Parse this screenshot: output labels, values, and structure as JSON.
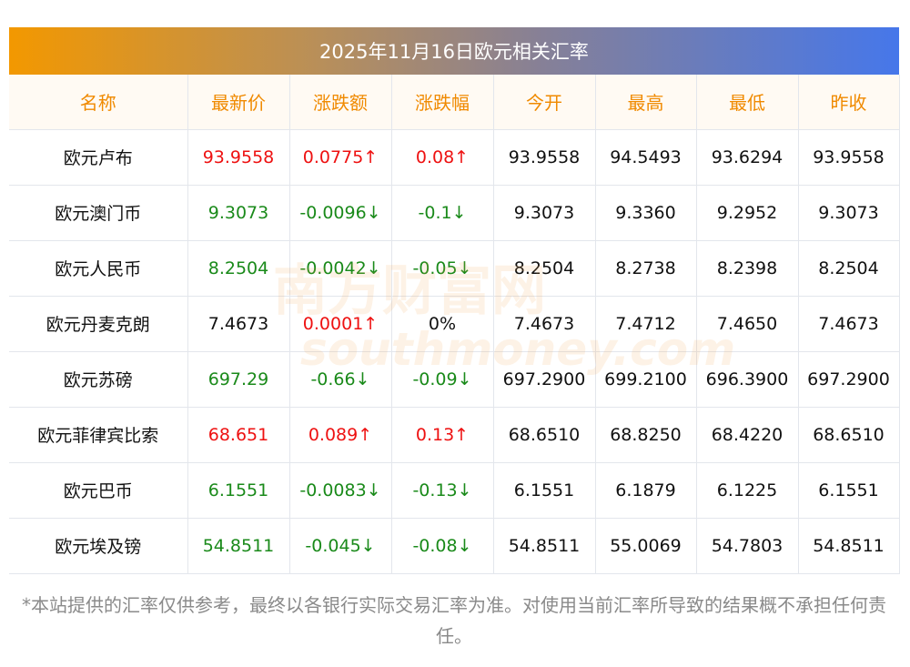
{
  "title": "2025年11月16日欧元相关汇率",
  "columns": [
    "名称",
    "最新价",
    "涨跌额",
    "涨跌幅",
    "今开",
    "最高",
    "最低",
    "昨收"
  ],
  "rows": [
    {
      "name": "欧元卢布",
      "price": "93.9558",
      "change": "0.0775↑",
      "pct": "0.08↑",
      "open": "93.9558",
      "high": "94.5493",
      "low": "93.6294",
      "prev": "93.9558",
      "dir": "up"
    },
    {
      "name": "欧元澳门币",
      "price": "9.3073",
      "change": "-0.0096↓",
      "pct": "-0.1↓",
      "open": "9.3073",
      "high": "9.3360",
      "low": "9.2952",
      "prev": "9.3073",
      "dir": "down"
    },
    {
      "name": "欧元人民币",
      "price": "8.2504",
      "change": "-0.0042↓",
      "pct": "-0.05↓",
      "open": "8.2504",
      "high": "8.2738",
      "low": "8.2398",
      "prev": "8.2504",
      "dir": "down"
    },
    {
      "name": "欧元丹麦克朗",
      "price": "7.4673",
      "change": "0.0001↑",
      "pct": "0%",
      "open": "7.4673",
      "high": "7.4712",
      "low": "7.4650",
      "prev": "7.4673",
      "dir": "up",
      "price_dir": "flat",
      "pct_dir": "flat"
    },
    {
      "name": "欧元苏磅",
      "price": "697.29",
      "change": "-0.66↓",
      "pct": "-0.09↓",
      "open": "697.2900",
      "high": "699.2100",
      "low": "696.3900",
      "prev": "697.2900",
      "dir": "down"
    },
    {
      "name": "欧元菲律宾比索",
      "price": "68.651",
      "change": "0.089↑",
      "pct": "0.13↑",
      "open": "68.6510",
      "high": "68.8250",
      "low": "68.4220",
      "prev": "68.6510",
      "dir": "up"
    },
    {
      "name": "欧元巴币",
      "price": "6.1551",
      "change": "-0.0083↓",
      "pct": "-0.13↓",
      "open": "6.1551",
      "high": "6.1879",
      "low": "6.1225",
      "prev": "6.1551",
      "dir": "down"
    },
    {
      "name": "欧元埃及镑",
      "price": "54.8511",
      "change": "-0.045↓",
      "pct": "-0.08↓",
      "open": "54.8511",
      "high": "55.0069",
      "low": "54.7803",
      "prev": "54.8511",
      "dir": "down"
    }
  ],
  "watermark": "南方财富网 southmoney.com",
  "note": "*本站提供的汇率仅供参考，最终以各银行实际交易汇率为准。对使用当前汇率所导致的结果概不承担任何责任。",
  "colors": {
    "up": "#ee1111",
    "down": "#1a8a1a",
    "header": "#f08a00"
  }
}
